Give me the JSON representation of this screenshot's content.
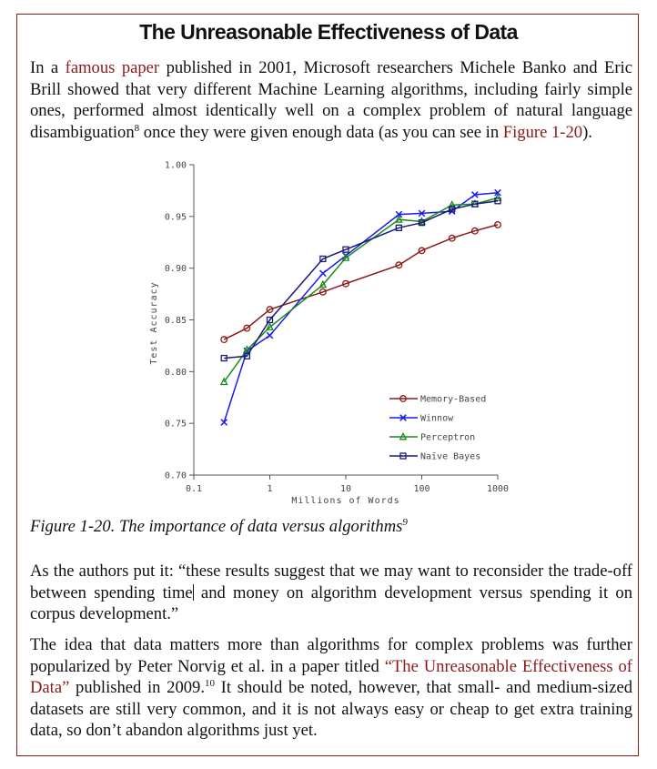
{
  "title": "The Unreasonable Effectiveness of Data",
  "para1": {
    "pre": "In a ",
    "link1": "famous paper",
    "mid": " published in 2001, Microsoft researchers Michele Banko and Eric Brill showed that very different Machine Learning algorithms, including fairly simple ones, performed almost identically well on a complex problem of natural language disambiguation",
    "fn": "8",
    "post": " once they were given enough data (as you can see in ",
    "link2": "Figure 1-20",
    "end": ")."
  },
  "caption": {
    "text": "Figure 1-20. The importance of data versus algorithms",
    "fn": "9"
  },
  "para2": {
    "pre": "As the authors put it: “these results suggest that we may want to reconsider the trade-off between spending time",
    "post": " and money on algorithm development versus spending it on corpus development.”"
  },
  "para3": {
    "pre": "The idea that data matters more than algorithms for complex problems was further popularized by Peter Norvig et al. in a paper titled ",
    "link": "“The Unreasonable Effectiveness of Data”",
    "mid": " published in 2009.",
    "fn": "10",
    "post": " It should be noted, however, that small- and medium-sized datasets are still very common, and it is not always easy or cheap to get extra training data, so don’t abandon algorithms just yet."
  },
  "colors": {
    "frame": "#8b1a1a",
    "link": "#8b1a1a"
  },
  "chart_data": {
    "type": "line",
    "xscale": "log",
    "xlabel": "Millions of Words",
    "ylabel": "Test Accuracy",
    "xlim": [
      0.1,
      1000
    ],
    "ylim": [
      0.7,
      1.0
    ],
    "x_ticks": [
      0.1,
      1,
      10,
      100,
      1000
    ],
    "x_tick_labels": [
      "0.1",
      "1",
      "10",
      "100",
      "1000"
    ],
    "y_ticks": [
      0.7,
      0.75,
      0.8,
      0.85,
      0.9,
      0.95,
      1.0
    ],
    "y_tick_labels": [
      "0.70",
      "0.75",
      "0.80",
      "0.85",
      "0.90",
      "0.95",
      "1.00"
    ],
    "x": [
      0.25,
      0.5,
      1,
      5,
      10,
      50,
      100,
      250,
      500,
      1000
    ],
    "legend_position": "bottom-right",
    "series": [
      {
        "name": "Memory-Based",
        "color": "#8b1a1a",
        "marker": "circle",
        "values": [
          0.831,
          0.842,
          0.86,
          0.877,
          0.885,
          0.903,
          0.917,
          0.929,
          0.936,
          0.942
        ]
      },
      {
        "name": "Winnow",
        "color": "#1a1aee",
        "marker": "x",
        "values": [
          0.751,
          0.82,
          0.835,
          0.895,
          0.912,
          0.952,
          0.953,
          0.955,
          0.971,
          0.973
        ]
      },
      {
        "name": "Perceptron",
        "color": "#1a8c1a",
        "marker": "triangle",
        "values": [
          0.79,
          0.821,
          0.843,
          0.884,
          0.91,
          0.947,
          0.945,
          0.961,
          0.962,
          0.968
        ]
      },
      {
        "name": "Naïve Bayes",
        "color": "#1a1a7a",
        "marker": "square",
        "values": [
          0.813,
          0.815,
          0.85,
          0.909,
          0.918,
          0.939,
          0.944,
          0.957,
          0.962,
          0.965
        ]
      }
    ]
  }
}
